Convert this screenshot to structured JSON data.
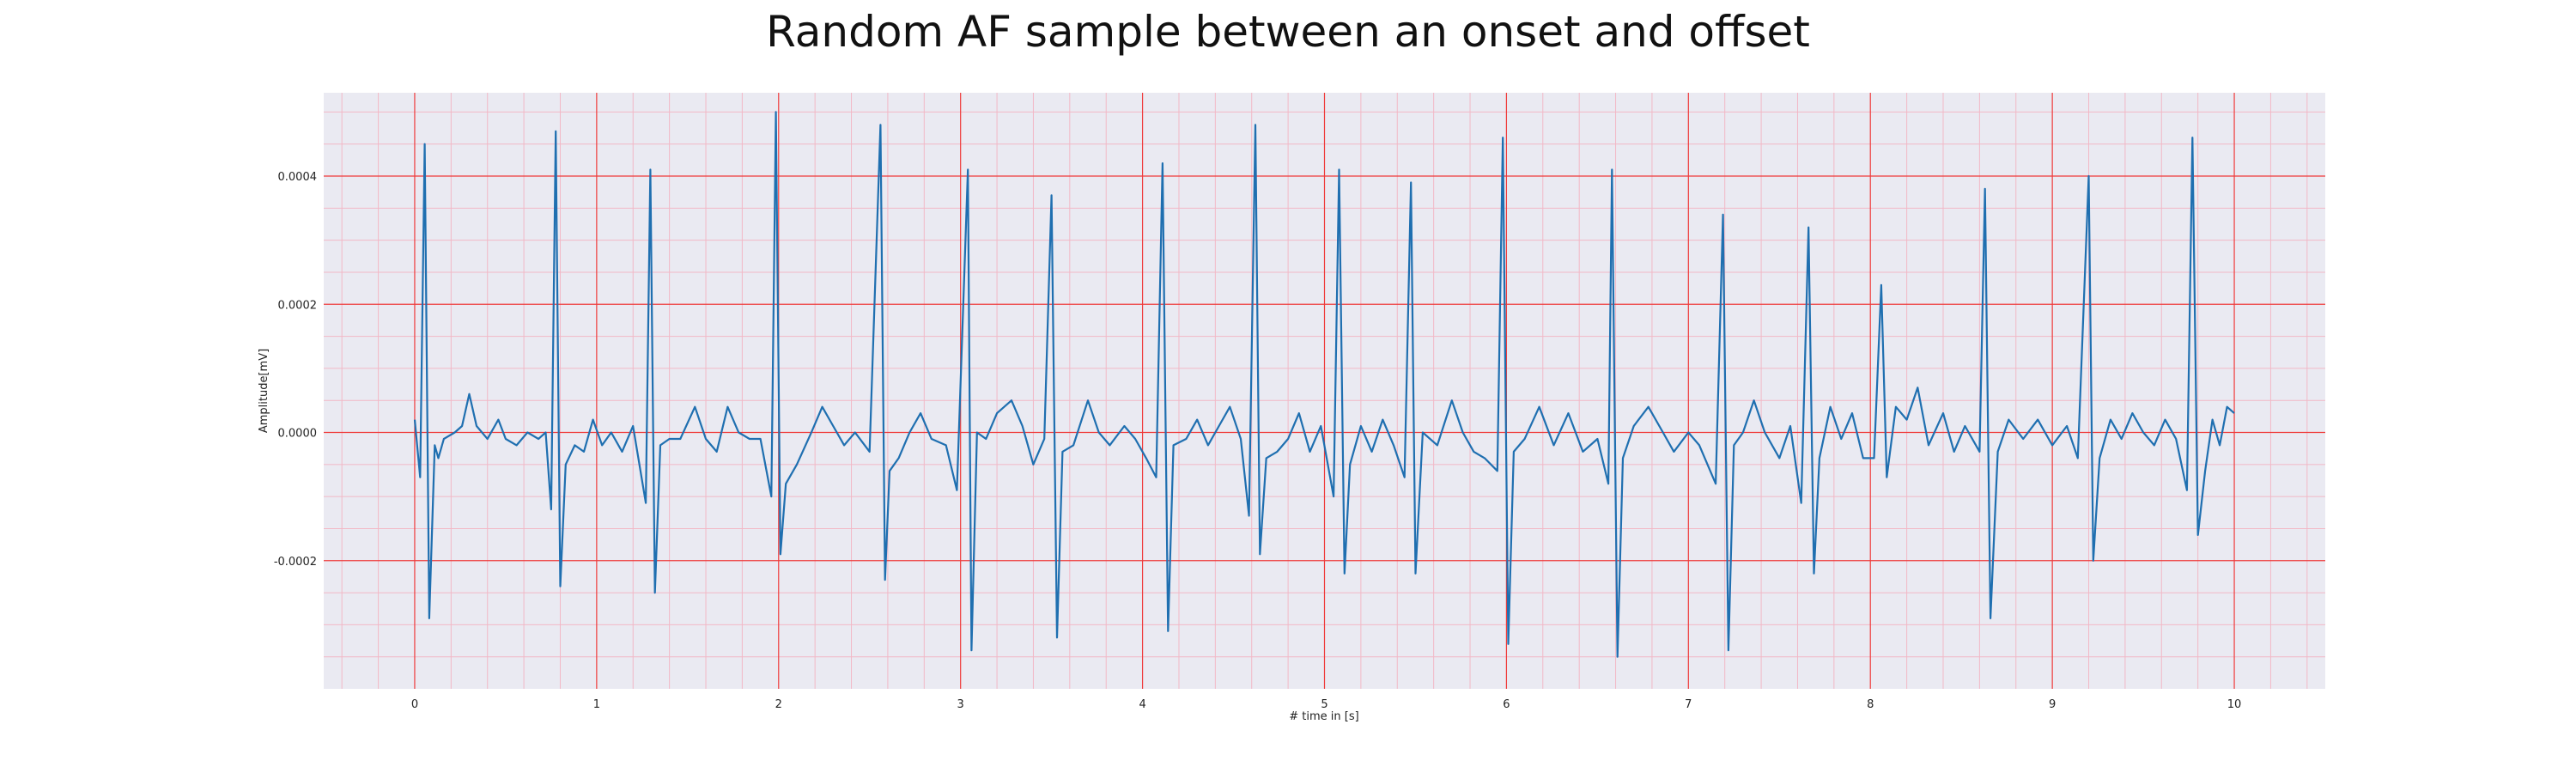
{
  "chart_data": {
    "type": "line",
    "title": "Random AF sample between an onset and offset",
    "xlabel": "# time in [s]",
    "ylabel": "Amplitude[mV]",
    "xlim": [
      -0.5,
      10.5
    ],
    "ylim": [
      -0.0004,
      0.00053
    ],
    "xticks": [
      0,
      1,
      2,
      3,
      4,
      5,
      6,
      7,
      8,
      9,
      10
    ],
    "xtick_labels": [
      "0",
      "1",
      "2",
      "3",
      "4",
      "5",
      "6",
      "7",
      "8",
      "9",
      "10"
    ],
    "yticks": [
      -0.0002,
      0.0,
      0.0002,
      0.0004
    ],
    "ytick_labels": [
      "-0.0002",
      "0.0000",
      "0.0002",
      "0.0004"
    ],
    "grid": "major and minor",
    "colors": {
      "line": "#1f6fb0",
      "plot_background": "#eaeaf2",
      "major_grid": "#ef3b3b",
      "minor_grid": "#f2b8c6"
    },
    "series": [
      {
        "points": [
          [
            0.0,
            2e-05
          ],
          [
            0.03,
            -7e-05
          ],
          [
            0.055,
            0.00045
          ],
          [
            0.08,
            -0.00029
          ],
          [
            0.11,
            -2e-05
          ],
          [
            0.13,
            -4e-05
          ],
          [
            0.16,
            -1e-05
          ],
          [
            0.22,
            0.0
          ],
          [
            0.26,
            1e-05
          ],
          [
            0.3,
            6e-05
          ],
          [
            0.34,
            1e-05
          ],
          [
            0.4,
            -1e-05
          ],
          [
            0.46,
            2e-05
          ],
          [
            0.5,
            -1e-05
          ],
          [
            0.56,
            -2e-05
          ],
          [
            0.62,
            0.0
          ],
          [
            0.68,
            -1e-05
          ],
          [
            0.72,
            0.0
          ],
          [
            0.75,
            -0.00012
          ],
          [
            0.775,
            0.00047
          ],
          [
            0.8,
            -0.00024
          ],
          [
            0.83,
            -5e-05
          ],
          [
            0.88,
            -2e-05
          ],
          [
            0.93,
            -3e-05
          ],
          [
            0.98,
            2e-05
          ],
          [
            1.03,
            -2e-05
          ],
          [
            1.08,
            0.0
          ],
          [
            1.14,
            -3e-05
          ],
          [
            1.2,
            1e-05
          ],
          [
            1.27,
            -0.00011
          ],
          [
            1.295,
            0.00041
          ],
          [
            1.32,
            -0.00025
          ],
          [
            1.35,
            -2e-05
          ],
          [
            1.4,
            -1e-05
          ],
          [
            1.46,
            -1e-05
          ],
          [
            1.54,
            4e-05
          ],
          [
            1.6,
            -1e-05
          ],
          [
            1.66,
            -3e-05
          ],
          [
            1.72,
            4e-05
          ],
          [
            1.78,
            0.0
          ],
          [
            1.84,
            -1e-05
          ],
          [
            1.9,
            -1e-05
          ],
          [
            1.96,
            -0.0001
          ],
          [
            1.985,
            0.0005
          ],
          [
            2.01,
            -0.00019
          ],
          [
            2.04,
            -8e-05
          ],
          [
            2.1,
            -5e-05
          ],
          [
            2.18,
            0.0
          ],
          [
            2.24,
            4e-05
          ],
          [
            2.3,
            1e-05
          ],
          [
            2.36,
            -2e-05
          ],
          [
            2.42,
            0.0
          ],
          [
            2.5,
            -3e-05
          ],
          [
            2.56,
            0.00048
          ],
          [
            2.585,
            -0.00023
          ],
          [
            2.61,
            -6e-05
          ],
          [
            2.66,
            -4e-05
          ],
          [
            2.72,
            0.0
          ],
          [
            2.78,
            3e-05
          ],
          [
            2.84,
            -1e-05
          ],
          [
            2.92,
            -2e-05
          ],
          [
            2.98,
            -9e-05
          ],
          [
            3.04,
            0.00041
          ],
          [
            3.06,
            -0.00034
          ],
          [
            3.09,
            0.0
          ],
          [
            3.14,
            -1e-05
          ],
          [
            3.2,
            3e-05
          ],
          [
            3.28,
            5e-05
          ],
          [
            3.34,
            1e-05
          ],
          [
            3.4,
            -5e-05
          ],
          [
            3.46,
            -1e-05
          ],
          [
            3.5,
            0.00037
          ],
          [
            3.53,
            -0.00032
          ],
          [
            3.56,
            -3e-05
          ],
          [
            3.62,
            -2e-05
          ],
          [
            3.7,
            5e-05
          ],
          [
            3.76,
            0.0
          ],
          [
            3.82,
            -2e-05
          ],
          [
            3.9,
            1e-05
          ],
          [
            3.96,
            -1e-05
          ],
          [
            4.02,
            -4e-05
          ],
          [
            4.075,
            -7e-05
          ],
          [
            4.11,
            0.00042
          ],
          [
            4.14,
            -0.00031
          ],
          [
            4.17,
            -2e-05
          ],
          [
            4.24,
            -1e-05
          ],
          [
            4.3,
            2e-05
          ],
          [
            4.36,
            -2e-05
          ],
          [
            4.42,
            1e-05
          ],
          [
            4.48,
            4e-05
          ],
          [
            4.54,
            -1e-05
          ],
          [
            4.585,
            -0.00013
          ],
          [
            4.62,
            0.00048
          ],
          [
            4.645,
            -0.00019
          ],
          [
            4.68,
            -4e-05
          ],
          [
            4.74,
            -3e-05
          ],
          [
            4.8,
            -1e-05
          ],
          [
            4.86,
            3e-05
          ],
          [
            4.92,
            -3e-05
          ],
          [
            4.98,
            1e-05
          ],
          [
            5.05,
            -0.0001
          ],
          [
            5.08,
            0.00041
          ],
          [
            5.11,
            -0.00022
          ],
          [
            5.14,
            -5e-05
          ],
          [
            5.2,
            1e-05
          ],
          [
            5.26,
            -3e-05
          ],
          [
            5.32,
            2e-05
          ],
          [
            5.38,
            -2e-05
          ],
          [
            5.44,
            -7e-05
          ],
          [
            5.475,
            0.00039
          ],
          [
            5.5,
            -0.00022
          ],
          [
            5.54,
            0.0
          ],
          [
            5.62,
            -2e-05
          ],
          [
            5.7,
            5e-05
          ],
          [
            5.76,
            0.0
          ],
          [
            5.82,
            -3e-05
          ],
          [
            5.88,
            -4e-05
          ],
          [
            5.95,
            -6e-05
          ],
          [
            5.98,
            0.00046
          ],
          [
            6.01,
            -0.00033
          ],
          [
            6.04,
            -3e-05
          ],
          [
            6.1,
            -1e-05
          ],
          [
            6.18,
            4e-05
          ],
          [
            6.26,
            -2e-05
          ],
          [
            6.34,
            3e-05
          ],
          [
            6.42,
            -3e-05
          ],
          [
            6.5,
            -1e-05
          ],
          [
            6.56,
            -8e-05
          ],
          [
            6.58,
            0.00041
          ],
          [
            6.61,
            -0.00035
          ],
          [
            6.64,
            -4e-05
          ],
          [
            6.7,
            1e-05
          ],
          [
            6.78,
            4e-05
          ],
          [
            6.86,
            0.0
          ],
          [
            6.92,
            -3e-05
          ],
          [
            7.0,
            0.0
          ],
          [
            7.06,
            -2e-05
          ],
          [
            7.15,
            -8e-05
          ],
          [
            7.19,
            0.00034
          ],
          [
            7.22,
            -0.00034
          ],
          [
            7.25,
            -2e-05
          ],
          [
            7.3,
            0.0
          ],
          [
            7.36,
            5e-05
          ],
          [
            7.42,
            0.0
          ],
          [
            7.5,
            -4e-05
          ],
          [
            7.56,
            1e-05
          ],
          [
            7.62,
            -0.00011
          ],
          [
            7.66,
            0.00032
          ],
          [
            7.69,
            -0.00022
          ],
          [
            7.72,
            -4e-05
          ],
          [
            7.78,
            4e-05
          ],
          [
            7.84,
            -1e-05
          ],
          [
            7.9,
            3e-05
          ],
          [
            7.96,
            -4e-05
          ],
          [
            8.02,
            -4e-05
          ],
          [
            8.06,
            0.00023
          ],
          [
            8.09,
            -7e-05
          ],
          [
            8.14,
            4e-05
          ],
          [
            8.2,
            2e-05
          ],
          [
            8.26,
            7e-05
          ],
          [
            8.32,
            -2e-05
          ],
          [
            8.4,
            3e-05
          ],
          [
            8.46,
            -3e-05
          ],
          [
            8.52,
            1e-05
          ],
          [
            8.6,
            -3e-05
          ],
          [
            8.63,
            0.00038
          ],
          [
            8.66,
            -0.00029
          ],
          [
            8.7,
            -3e-05
          ],
          [
            8.76,
            2e-05
          ],
          [
            8.84,
            -1e-05
          ],
          [
            8.92,
            2e-05
          ],
          [
            9.0,
            -2e-05
          ],
          [
            9.08,
            1e-05
          ],
          [
            9.14,
            -4e-05
          ],
          [
            9.2,
            0.0004
          ],
          [
            9.225,
            -0.0002
          ],
          [
            9.26,
            -4e-05
          ],
          [
            9.32,
            2e-05
          ],
          [
            9.38,
            -1e-05
          ],
          [
            9.44,
            3e-05
          ],
          [
            9.5,
            0.0
          ],
          [
            9.56,
            -2e-05
          ],
          [
            9.62,
            2e-05
          ],
          [
            9.68,
            -1e-05
          ],
          [
            9.74,
            -9e-05
          ],
          [
            9.77,
            0.00046
          ],
          [
            9.8,
            -0.00016
          ],
          [
            9.84,
            -6e-05
          ],
          [
            9.88,
            2e-05
          ],
          [
            9.92,
            -2e-05
          ],
          [
            9.96,
            4e-05
          ],
          [
            10.0,
            3e-05
          ]
        ]
      }
    ]
  }
}
